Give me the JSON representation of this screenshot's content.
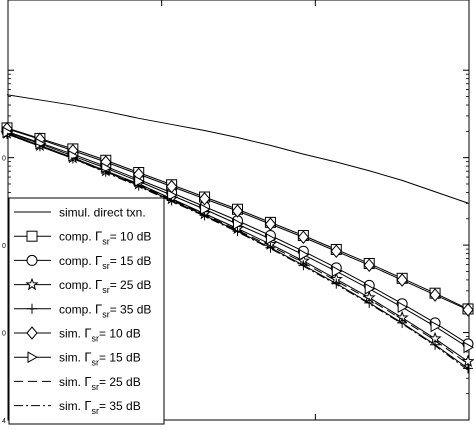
{
  "chart_data": {
    "type": "line",
    "title": "",
    "xlabel": "",
    "ylabel": "",
    "y_scale": "log",
    "ylim_exponent": [
      -4,
      0
    ],
    "ytick_labels": [
      {
        "exp": -1,
        "label": "0"
      },
      {
        "exp": -2,
        "label": "0"
      },
      {
        "exp": -3,
        "label": "0"
      },
      {
        "exp": -4,
        "label": "4"
      }
    ],
    "grid": false,
    "legend_position": "bottom-left",
    "x": [
      0,
      1,
      2,
      3,
      4,
      5,
      6,
      7,
      8,
      9,
      10,
      11,
      12,
      13,
      14
    ],
    "series": [
      {
        "name": "simul. direct txn.",
        "style": "solid",
        "marker": "none",
        "log10_values": [
          -0.28,
          -0.34,
          -0.4,
          -0.47,
          -0.55,
          -0.62,
          -0.69,
          -0.77,
          -0.86,
          -0.96,
          -1.05,
          -1.15,
          -1.26,
          -1.39,
          -1.52
        ]
      },
      {
        "name": "comp. Γsr = 10 dB",
        "style": "solid",
        "marker": "square",
        "log10_values": [
          -0.66,
          -0.78,
          -0.9,
          -1.03,
          -1.17,
          -1.31,
          -1.45,
          -1.59,
          -1.74,
          -1.89,
          -2.05,
          -2.21,
          -2.38,
          -2.55,
          -2.73
        ]
      },
      {
        "name": "comp. Γsr = 15 dB",
        "style": "solid",
        "marker": "circle",
        "log10_values": [
          -0.7,
          -0.83,
          -0.96,
          -1.1,
          -1.25,
          -1.4,
          -1.56,
          -1.72,
          -1.89,
          -2.07,
          -2.26,
          -2.46,
          -2.67,
          -2.89,
          -3.13
        ]
      },
      {
        "name": "comp. Γsr = 25 dB",
        "style": "solid",
        "marker": "star",
        "log10_values": [
          -0.72,
          -0.86,
          -1.0,
          -1.15,
          -1.3,
          -1.47,
          -1.64,
          -1.81,
          -1.99,
          -2.18,
          -2.39,
          -2.6,
          -2.83,
          -3.07,
          -3.33
        ]
      },
      {
        "name": "comp. Γsr = 35 dB",
        "style": "solid",
        "marker": "plus",
        "log10_values": [
          -0.73,
          -0.87,
          -1.01,
          -1.16,
          -1.32,
          -1.49,
          -1.66,
          -1.84,
          -2.03,
          -2.23,
          -2.44,
          -2.66,
          -2.89,
          -3.14,
          -3.41
        ]
      },
      {
        "name": "sim. Γsr = 10 dB",
        "style": "solid",
        "marker": "diamond",
        "log10_values": [
          -0.67,
          -0.79,
          -0.92,
          -1.05,
          -1.19,
          -1.33,
          -1.47,
          -1.61,
          -1.76,
          -1.91,
          -2.07,
          -2.23,
          -2.4,
          -2.57,
          -2.74
        ]
      },
      {
        "name": "sim. Γsr = 15 dB",
        "style": "solid",
        "marker": "triangle-right",
        "log10_values": [
          -0.71,
          -0.84,
          -0.98,
          -1.12,
          -1.27,
          -1.43,
          -1.59,
          -1.76,
          -1.93,
          -2.11,
          -2.3,
          -2.5,
          -2.71,
          -2.93,
          -3.17
        ]
      },
      {
        "name": "sim. Γsr = 25 dB",
        "style": "dashed",
        "marker": "none",
        "log10_values": [
          -0.72,
          -0.86,
          -1.0,
          -1.15,
          -1.31,
          -1.48,
          -1.65,
          -1.83,
          -2.01,
          -2.2,
          -2.41,
          -2.62,
          -2.85,
          -3.09,
          -3.36
        ]
      },
      {
        "name": "sim. Γsr = 35 dB",
        "style": "dashdot",
        "marker": "none",
        "log10_values": [
          -0.73,
          -0.87,
          -1.01,
          -1.17,
          -1.33,
          -1.5,
          -1.67,
          -1.85,
          -2.04,
          -2.24,
          -2.45,
          -2.67,
          -2.9,
          -3.15,
          -3.43
        ]
      }
    ],
    "legend_entries": [
      {
        "prefix": "simul. direct txn.",
        "gamma": "",
        "suffix": ""
      },
      {
        "prefix": "comp.",
        "gamma": "Γ",
        "sub": "sr",
        "suffix": "= 10 dB"
      },
      {
        "prefix": "comp.",
        "gamma": "Γ",
        "sub": "sr",
        "suffix": "= 15 dB"
      },
      {
        "prefix": "comp.",
        "gamma": "Γ",
        "sub": "sr",
        "suffix": "= 25 dB"
      },
      {
        "prefix": "comp.",
        "gamma": "Γ",
        "sub": "sr",
        "suffix": "= 35 dB"
      },
      {
        "prefix": "sim.",
        "gamma": "Γ",
        "sub": "sr",
        "suffix": "= 10 dB"
      },
      {
        "prefix": "sim.",
        "gamma": "Γ",
        "sub": "sr",
        "suffix": "= 15 dB"
      },
      {
        "prefix": "sim.",
        "gamma": "Γ",
        "sub": "sr",
        "suffix": "= 25 dB"
      },
      {
        "prefix": "sim.",
        "gamma": "Γ",
        "sub": "sr",
        "suffix": "= 35 dB"
      }
    ]
  }
}
